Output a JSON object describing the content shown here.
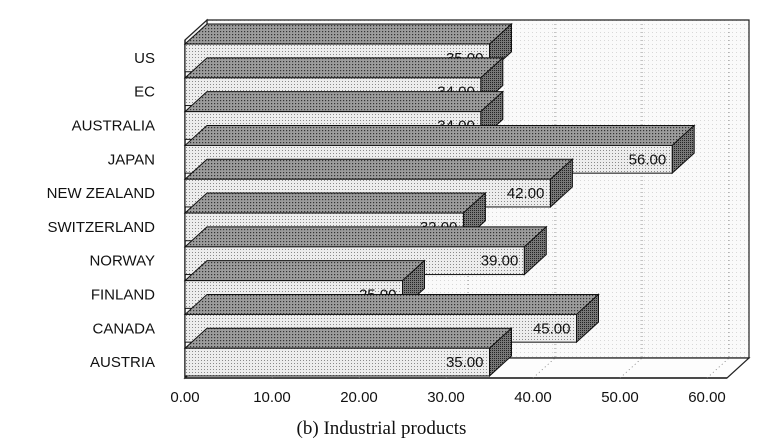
{
  "caption": "(b) Industrial products",
  "chart_data": {
    "type": "bar",
    "orientation": "horizontal",
    "style": "3d",
    "categories": [
      "US",
      "EC",
      "AUSTRALIA",
      "JAPAN",
      "NEW ZEALAND",
      "SWITZERLAND",
      "NORWAY",
      "FINLAND",
      "CANADA",
      "AUSTRIA"
    ],
    "values": [
      35.0,
      34.0,
      34.0,
      56.0,
      42.0,
      32.0,
      39.0,
      25.0,
      45.0,
      35.0
    ],
    "value_labels": [
      "35.00",
      "34.00",
      "34.00",
      "56.00",
      "42.00",
      "32.00",
      "39.00",
      "25.00",
      "45.00",
      "35.00"
    ],
    "x_ticks": [
      "0.00",
      "10.00",
      "20.00",
      "30.00",
      "40.00",
      "50.00",
      "60.00"
    ],
    "xlim": [
      0,
      60
    ],
    "xlabel": "",
    "ylabel": "",
    "grid": "vertical dotted",
    "colors": {
      "bar_face": "#e6e6e6",
      "bar_top": "#9a9a9a",
      "bar_side": "#6e6e6e",
      "axis": "#222222"
    }
  }
}
